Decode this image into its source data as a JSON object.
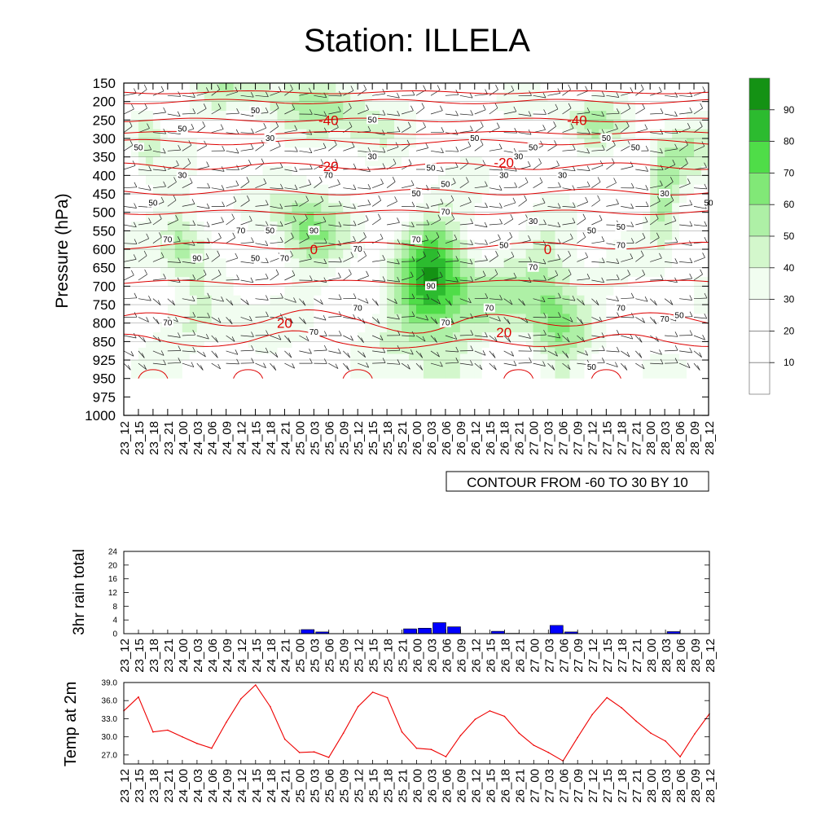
{
  "title": "Station: ILLELA",
  "colors": {
    "contour_line": "#dd0000",
    "rain_bar": "#0000ff",
    "temp_line": "#ee0000",
    "rh_levels": [
      "#ffffff",
      "#ffffff",
      "#ffffff",
      "#f1fdf0",
      "#d3f7cc",
      "#aef0a6",
      "#81e877",
      "#4fdd48",
      "#2cbb2f",
      "#149214"
    ]
  },
  "chart_data": [
    {
      "type": "heatmap",
      "name": "relative-humidity-cross-section",
      "ylabel": "Pressure (hPa)",
      "y_ticks": [
        150,
        200,
        250,
        300,
        350,
        400,
        450,
        500,
        550,
        600,
        650,
        700,
        750,
        800,
        850,
        925,
        950,
        975,
        1000
      ],
      "x_ticks": [
        "23_12",
        "23_15",
        "23_18",
        "23_21",
        "24_00",
        "24_03",
        "24_06",
        "24_09",
        "24_12",
        "24_15",
        "24_18",
        "24_21",
        "25_00",
        "25_03",
        "25_06",
        "25_09",
        "25_12",
        "25_15",
        "25_18",
        "25_21",
        "26_00",
        "26_03",
        "26_06",
        "26_09",
        "26_12",
        "26_15",
        "26_18",
        "26_21",
        "27_00",
        "27_03",
        "27_06",
        "27_09",
        "27_12",
        "27_15",
        "27_18",
        "27_21",
        "28_00",
        "28_03",
        "28_06",
        "28_09",
        "28_12"
      ],
      "colorbar_labels": [
        "10",
        "20",
        "30",
        "40",
        "50",
        "60",
        "70",
        "80",
        "90"
      ],
      "colorbar_levels": [
        10,
        20,
        30,
        40,
        50,
        60,
        70,
        80,
        90
      ],
      "contour_note": "CONTOUR FROM -60 TO 30 BY 10",
      "temperature_contour_labels": [
        {
          "text": "-40",
          "x": "25_06",
          "p": 250
        },
        {
          "text": "-40",
          "x": "27_09",
          "p": 250
        },
        {
          "text": "-20",
          "x": "25_06",
          "p": 375
        },
        {
          "text": "-20",
          "x": "26_18",
          "p": 365
        },
        {
          "text": "0",
          "x": "25_03",
          "p": 600
        },
        {
          "text": "0",
          "x": "27_03",
          "p": 600
        },
        {
          "text": "20",
          "x": "24_21",
          "p": 800
        },
        {
          "text": "20",
          "x": "26_18",
          "p": 825
        }
      ],
      "rh_contour_labels": [
        {
          "text": "50",
          "x": "24_15",
          "p": 225
        },
        {
          "text": "50",
          "x": "24_00",
          "p": 275
        },
        {
          "text": "50",
          "x": "23_15",
          "p": 325
        },
        {
          "text": "30",
          "x": "24_18",
          "p": 300
        },
        {
          "text": "30",
          "x": "24_00",
          "p": 400
        },
        {
          "text": "50",
          "x": "23_18",
          "p": 475
        },
        {
          "text": "70",
          "x": "24_12",
          "p": 550
        },
        {
          "text": "50",
          "x": "24_18",
          "p": 550
        },
        {
          "text": "70",
          "x": "23_21",
          "p": 575
        },
        {
          "text": "90",
          "x": "24_03",
          "p": 625
        },
        {
          "text": "50",
          "x": "24_15",
          "p": 625
        },
        {
          "text": "70",
          "x": "24_21",
          "p": 625
        },
        {
          "text": "90",
          "x": "25_03",
          "p": 550
        },
        {
          "text": "70",
          "x": "25_06",
          "p": 400
        },
        {
          "text": "70",
          "x": "25_12",
          "p": 600
        },
        {
          "text": "50",
          "x": "25_15",
          "p": 250
        },
        {
          "text": "30",
          "x": "25_15",
          "p": 350
        },
        {
          "text": "50",
          "x": "26_00",
          "p": 450
        },
        {
          "text": "50",
          "x": "26_03",
          "p": 380
        },
        {
          "text": "50",
          "x": "26_06",
          "p": 425
        },
        {
          "text": "70",
          "x": "26_06",
          "p": 500
        },
        {
          "text": "70",
          "x": "26_00",
          "p": 575
        },
        {
          "text": "90",
          "x": "26_03",
          "p": 700
        },
        {
          "text": "70",
          "x": "26_06",
          "p": 800
        },
        {
          "text": "70",
          "x": "25_12",
          "p": 760
        },
        {
          "text": "70",
          "x": "25_03",
          "p": 825
        },
        {
          "text": "70",
          "x": "23_21",
          "p": 800
        },
        {
          "text": "50",
          "x": "26_12",
          "p": 300
        },
        {
          "text": "30",
          "x": "26_18",
          "p": 400
        },
        {
          "text": "30",
          "x": "26_21",
          "p": 350
        },
        {
          "text": "50",
          "x": "27_00",
          "p": 325
        },
        {
          "text": "30",
          "x": "27_00",
          "p": 525
        },
        {
          "text": "50",
          "x": "26_18",
          "p": 590
        },
        {
          "text": "70",
          "x": "27_00",
          "p": 650
        },
        {
          "text": "70",
          "x": "26_15",
          "p": 760
        },
        {
          "text": "30",
          "x": "27_06",
          "p": 400
        },
        {
          "text": "50",
          "x": "27_15",
          "p": 300
        },
        {
          "text": "50",
          "x": "27_21",
          "p": 325
        },
        {
          "text": "50",
          "x": "27_12",
          "p": 550
        },
        {
          "text": "50",
          "x": "27_18",
          "p": 540
        },
        {
          "text": "70",
          "x": "27_18",
          "p": 590
        },
        {
          "text": "30",
          "x": "28_03",
          "p": 450
        },
        {
          "text": "50",
          "x": "28_12",
          "p": 475
        },
        {
          "text": "70",
          "x": "27_18",
          "p": 760
        },
        {
          "text": "70",
          "x": "28_03",
          "p": 790
        },
        {
          "text": "50",
          "x": "28_06",
          "p": 780
        },
        {
          "text": "50",
          "x": "27_12",
          "p": 935
        }
      ]
    },
    {
      "type": "bar",
      "name": "rain",
      "ylabel": "3hr rain total",
      "ylim": [
        0,
        24
      ],
      "y_ticks": [
        0,
        4,
        8,
        12,
        16,
        20,
        24
      ],
      "categories": [
        "23_12",
        "23_15",
        "23_18",
        "23_21",
        "24_00",
        "24_03",
        "24_06",
        "24_09",
        "24_12",
        "24_15",
        "24_18",
        "24_21",
        "25_00",
        "25_03",
        "25_06",
        "25_09",
        "25_12",
        "25_15",
        "25_18",
        "25_21",
        "26_00",
        "26_03",
        "26_06",
        "26_09",
        "26_12",
        "26_15",
        "26_18",
        "26_21",
        "27_00",
        "27_03",
        "27_06",
        "27_09",
        "27_12",
        "27_15",
        "27_18",
        "27_21",
        "28_00",
        "28_03",
        "28_06",
        "28_09",
        "28_12"
      ],
      "values": [
        0,
        0,
        0,
        0,
        0,
        0,
        0,
        0,
        0,
        0,
        0,
        0,
        1.2,
        0.5,
        0,
        0,
        0,
        0,
        0,
        1.4,
        1.6,
        3.2,
        2.0,
        0,
        0,
        0.7,
        0.1,
        0,
        0,
        2.4,
        0.5,
        0,
        0,
        0,
        0,
        0,
        0,
        0.6,
        0,
        0,
        0
      ]
    },
    {
      "type": "line",
      "name": "temperature",
      "ylabel": "Temp at 2m",
      "ylim": [
        25.5,
        39.0
      ],
      "y_ticks": [
        "27.0",
        "30.0",
        "33.0",
        "36.0",
        "39.0"
      ],
      "categories": [
        "23_12",
        "23_15",
        "23_18",
        "23_21",
        "24_00",
        "24_03",
        "24_06",
        "24_09",
        "24_12",
        "24_15",
        "24_18",
        "24_21",
        "25_00",
        "25_03",
        "25_06",
        "25_09",
        "25_12",
        "25_15",
        "25_18",
        "25_21",
        "26_00",
        "26_03",
        "26_06",
        "26_09",
        "26_12",
        "26_15",
        "26_18",
        "26_21",
        "27_00",
        "27_03",
        "27_06",
        "27_09",
        "27_12",
        "27_15",
        "27_18",
        "27_21",
        "28_00",
        "28_03",
        "28_06",
        "28_09",
        "28_12"
      ],
      "values": [
        34.3,
        36.6,
        30.8,
        31.1,
        30.0,
        28.9,
        28.1,
        32.4,
        36.3,
        38.6,
        35.0,
        29.6,
        27.4,
        27.5,
        26.6,
        30.6,
        35.0,
        37.4,
        36.5,
        30.8,
        28.1,
        27.9,
        26.7,
        30.2,
        32.9,
        34.3,
        33.4,
        30.6,
        28.6,
        27.4,
        26.0,
        29.9,
        33.7,
        36.5,
        34.8,
        32.6,
        30.6,
        29.3,
        26.7,
        30.5,
        33.8
      ]
    }
  ]
}
